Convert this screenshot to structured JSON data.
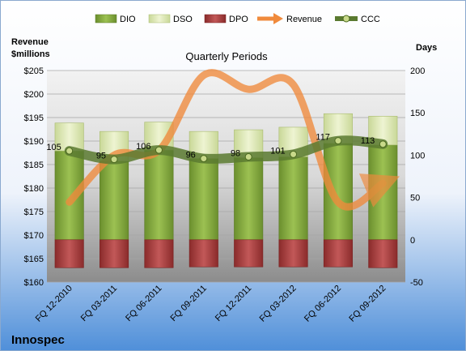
{
  "chart_data": {
    "type": "bar",
    "title": "Quarterly Periods",
    "company": "Innospec",
    "left_axis_title_line1": "Revenue",
    "left_axis_title_line2": "$millions",
    "right_axis_title": "Days",
    "categories": [
      "FQ 12-2010",
      "FQ 03-2011",
      "FQ 06-2011",
      "FQ 09-2011",
      "FQ 12-2011",
      "FQ 03-2012",
      "FQ 06-2012",
      "FQ 09-2012"
    ],
    "left_axis": {
      "min": 160,
      "max": 205,
      "step": 5,
      "tick_prefix": "$"
    },
    "right_axis": {
      "min": -50,
      "max": 200,
      "step": 50
    },
    "stacked_days": true,
    "series": [
      {
        "name": "DIO",
        "axis": "right",
        "kind": "bar",
        "color": "#7ea23c",
        "values": [
          105,
          93,
          106,
          96,
          97,
          98,
          114,
          112
        ]
      },
      {
        "name": "DSO",
        "axis": "right",
        "kind": "bar",
        "color": "#dde8b4",
        "values": [
          33,
          35,
          33,
          32,
          33,
          35,
          35,
          34
        ]
      },
      {
        "name": "DPO",
        "axis": "right",
        "kind": "bar",
        "color": "#a83c3c",
        "values": [
          -33,
          -33,
          -33,
          -32,
          -32,
          -32,
          -32,
          -33
        ]
      },
      {
        "name": "Revenue",
        "axis": "left",
        "kind": "line",
        "color": "#f08a3c",
        "values": [
          177,
          187,
          188,
          204,
          201,
          202,
          177,
          181
        ]
      },
      {
        "name": "CCC",
        "axis": "right",
        "kind": "line",
        "color": "#5a7a30",
        "values": [
          105,
          95,
          106,
          96,
          98,
          101,
          117,
          113
        ]
      }
    ]
  }
}
